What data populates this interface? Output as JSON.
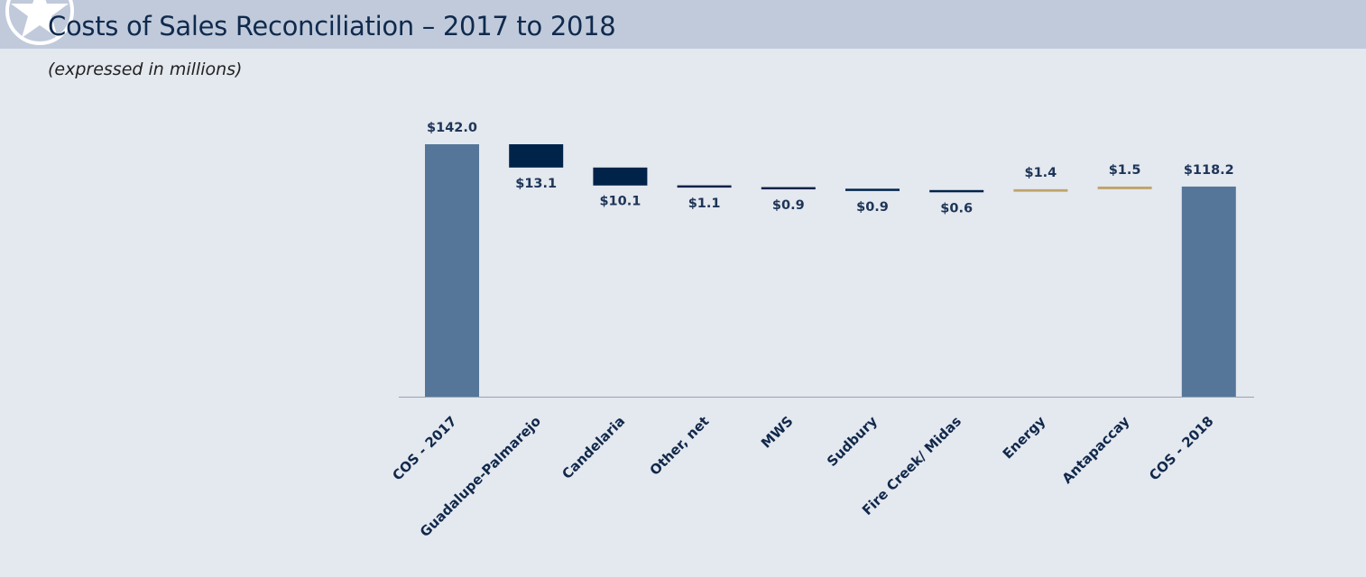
{
  "header": {
    "title": "Costs of Sales Reconciliation – 2017 to 2018",
    "subtitle": "(expressed in millions)"
  },
  "colors": {
    "total": "#557699",
    "decrease": "#00234a",
    "increase": "#bfa46a",
    "axis": "#9aa4b2"
  },
  "chart_data": {
    "type": "bar",
    "subtype": "waterfall",
    "title": "Costs of Sales Reconciliation – 2017 to 2018",
    "subtitle": "(expressed in millions)",
    "xlabel": "",
    "ylabel": "",
    "ylim": [
      0,
      142
    ],
    "grid": false,
    "legend": "none",
    "categories": [
      "COS - 2017",
      "Guadalupe-Palmarejo",
      "Candelaria",
      "Other, net",
      "MWS",
      "Sudbury",
      "Fire Creek/ Midas",
      "Energy",
      "Antapaccay",
      "COS - 2018"
    ],
    "steps": [
      {
        "category": "COS - 2017",
        "kind": "total",
        "value": 142.0,
        "label": "$142.0"
      },
      {
        "category": "Guadalupe-Palmarejo",
        "kind": "decrease",
        "value": -13.1,
        "label": "$13.1"
      },
      {
        "category": "Candelaria",
        "kind": "decrease",
        "value": -10.1,
        "label": "$10.1"
      },
      {
        "category": "Other, net",
        "kind": "decrease",
        "value": -1.1,
        "label": "$1.1"
      },
      {
        "category": "MWS",
        "kind": "decrease",
        "value": -0.9,
        "label": "$0.9"
      },
      {
        "category": "Sudbury",
        "kind": "decrease",
        "value": -0.9,
        "label": "$0.9"
      },
      {
        "category": "Fire Creek/ Midas",
        "kind": "decrease",
        "value": -0.6,
        "label": "$0.6"
      },
      {
        "category": "Energy",
        "kind": "increase",
        "value": 1.4,
        "label": "$1.4"
      },
      {
        "category": "Antapaccay",
        "kind": "increase",
        "value": 1.5,
        "label": "$1.5"
      },
      {
        "category": "COS - 2018",
        "kind": "total",
        "value": 118.2,
        "label": "$118.2"
      }
    ]
  }
}
